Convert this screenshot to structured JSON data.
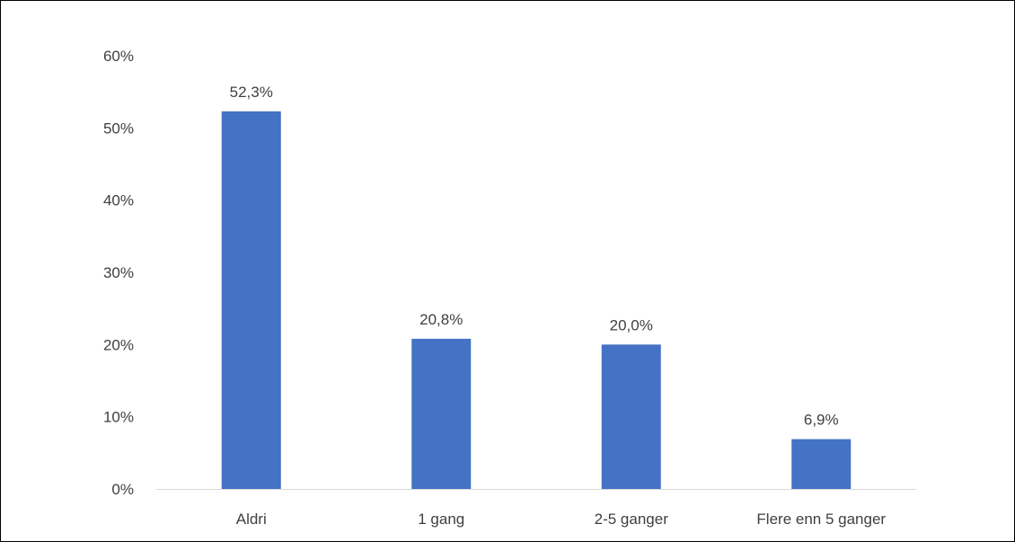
{
  "chart_data": {
    "type": "bar",
    "categories": [
      "Aldri",
      "1 gang",
      "2-5 ganger",
      "Flere enn 5 ganger"
    ],
    "values": [
      52.3,
      20.8,
      20.0,
      6.9
    ],
    "value_labels": [
      "52,3%",
      "20,8%",
      "20,0%",
      "6,9%"
    ],
    "title": "",
    "xlabel": "",
    "ylabel": "",
    "ylim": [
      0,
      60
    ],
    "yticks": [
      0,
      10,
      20,
      30,
      40,
      50,
      60
    ],
    "ytick_labels": [
      "0%",
      "10%",
      "20%",
      "30%",
      "40%",
      "50%",
      "60%"
    ],
    "grid": false,
    "legend": "none",
    "bar_color": "#4472C4",
    "axis_color": "#D9D9D9",
    "text_color": "#404040"
  }
}
